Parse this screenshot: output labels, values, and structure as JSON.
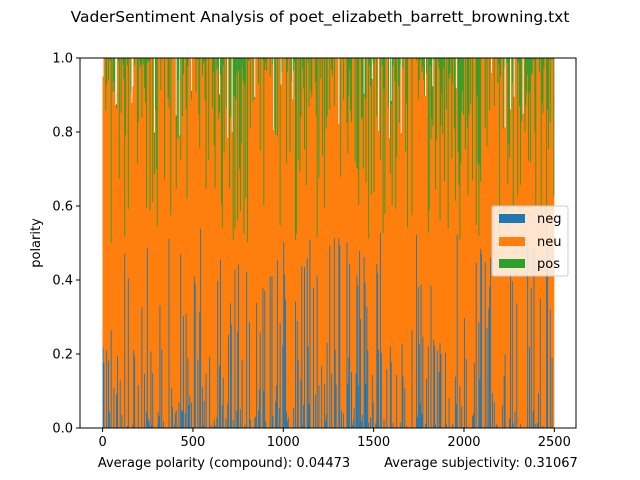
{
  "chart_data": {
    "type": "bar",
    "stacked": true,
    "title": "VaderSentiment Analysis of poet_elizabeth_barrett_browning.txt",
    "xlabel": "",
    "ylabel": "polarity",
    "xlim": [
      -125,
      2620
    ],
    "ylim": [
      0.0,
      1.0
    ],
    "x_ticks": [
      "0",
      "500",
      "1000",
      "1500",
      "2000",
      "2500"
    ],
    "y_ticks": [
      "0.0",
      "0.2",
      "0.4",
      "0.6",
      "0.8",
      "1.0"
    ],
    "x_start": 0,
    "x_end": 2500,
    "n_bars": 2500,
    "grid": false,
    "legend_position": "center right",
    "series": [
      {
        "name": "neg",
        "color": "#1f77b4",
        "approx_mean": 0.06,
        "approx_max": 0.57
      },
      {
        "name": "neu",
        "color": "#ff7f0e",
        "approx_mean": 0.8
      },
      {
        "name": "pos",
        "color": "#2ca02c",
        "approx_mean": 0.14,
        "approx_max": 0.52
      }
    ]
  },
  "footer": {
    "polarity_text": "Average polarity (compound): 0.04473",
    "subjectivity_text": "Average subjectivity: 0.31067"
  }
}
